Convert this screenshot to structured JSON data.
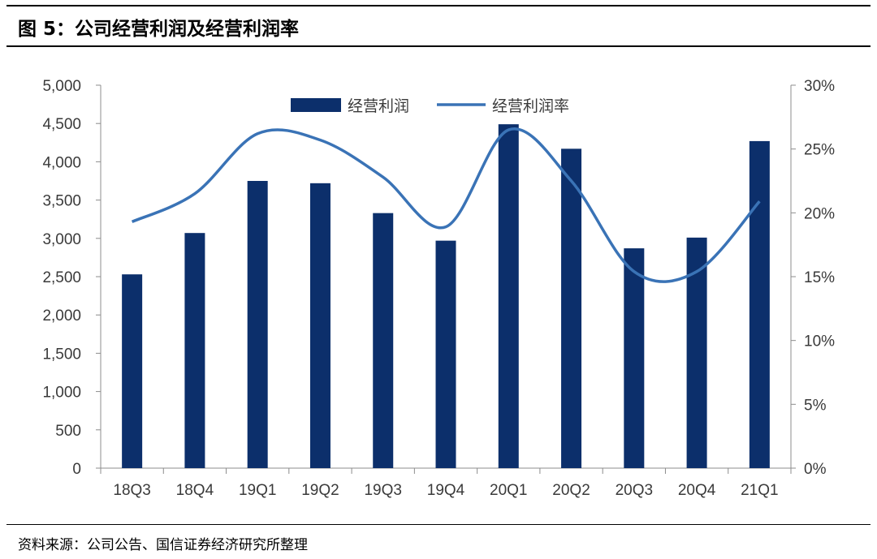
{
  "header": {
    "title": "图 5：公司经营利润及经营利润率"
  },
  "footer": {
    "source": "资料来源：公司公告、国信证券经济研究所整理"
  },
  "chart_data": {
    "type": "bar",
    "title": "",
    "categories": [
      "18Q3",
      "18Q4",
      "19Q1",
      "19Q2",
      "19Q3",
      "19Q4",
      "20Q1",
      "20Q2",
      "20Q3",
      "20Q4",
      "21Q1"
    ],
    "series": [
      {
        "name": "经营利润",
        "type": "bar",
        "axis": "left",
        "values": [
          2530,
          3070,
          3750,
          3720,
          3330,
          2970,
          4490,
          4170,
          2870,
          3010,
          4270
        ]
      },
      {
        "name": "经营利润率",
        "type": "line",
        "axis": "right",
        "smooth": true,
        "values": [
          0.193,
          0.215,
          0.262,
          0.257,
          0.228,
          0.189,
          0.265,
          0.225,
          0.154,
          0.154,
          0.209
        ]
      }
    ],
    "ylim_left": [
      0,
      5000
    ],
    "yticks_left": [
      "0",
      "500",
      "1,000",
      "1,500",
      "2,000",
      "2,500",
      "3,000",
      "3,500",
      "4,000",
      "4,500",
      "5,000"
    ],
    "ylim_right": [
      0,
      0.3
    ],
    "yticks_right": [
      "0%",
      "5%",
      "10%",
      "15%",
      "20%",
      "25%",
      "30%"
    ],
    "grid": false,
    "legend_position": "top",
    "colors": {
      "bar": "#0c2f6b",
      "line": "#3a73b6"
    }
  }
}
